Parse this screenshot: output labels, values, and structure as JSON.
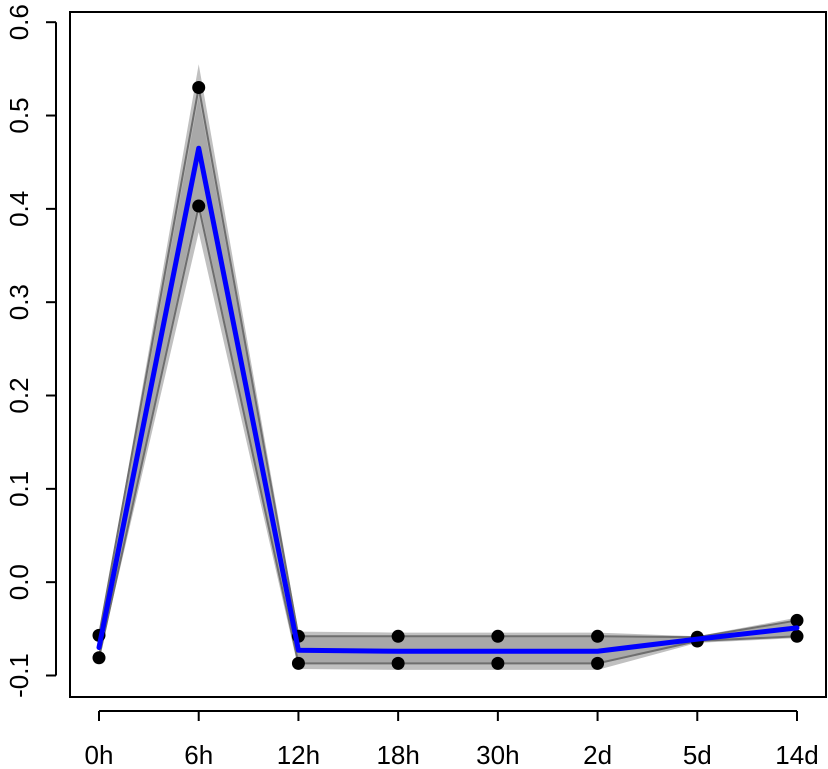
{
  "chart_data": {
    "type": "line",
    "title": "",
    "xlabel": "",
    "ylabel": "",
    "categories": [
      "0h",
      "6h",
      "12h",
      "18h",
      "30h",
      "2d",
      "5d",
      "14d"
    ],
    "ylim": [
      -0.12,
      0.6
    ],
    "yticks": [
      -0.1,
      0.0,
      0.1,
      0.2,
      0.3,
      0.4,
      0.5,
      0.6
    ],
    "ytick_labels": [
      "-0.1",
      "0.0",
      "0.1",
      "0.2",
      "0.3",
      "0.4",
      "0.5",
      "0.6"
    ],
    "mean": [
      -0.07,
      0.465,
      -0.073,
      -0.074,
      -0.074,
      -0.074,
      -0.061,
      -0.049
    ],
    "band_outer_upper": [
      -0.058,
      0.555,
      -0.053,
      -0.054,
      -0.054,
      -0.054,
      -0.058,
      -0.038
    ],
    "band_outer_lower": [
      -0.082,
      0.375,
      -0.093,
      -0.094,
      -0.094,
      -0.094,
      -0.065,
      -0.06
    ],
    "band_inner_upper": [
      -0.062,
      0.52,
      -0.058,
      -0.058,
      -0.058,
      -0.058,
      -0.059,
      -0.042
    ],
    "band_inner_lower": [
      -0.078,
      0.41,
      -0.087,
      -0.088,
      -0.088,
      -0.088,
      -0.064,
      -0.057
    ],
    "series": [
      {
        "values": [
          -0.057,
          0.53,
          -0.058,
          -0.058,
          -0.058,
          -0.058,
          -0.059,
          -0.041
        ]
      },
      {
        "values": [
          -0.081,
          0.403,
          -0.087,
          -0.087,
          -0.087,
          -0.087,
          -0.063,
          -0.058
        ]
      }
    ],
    "colors": {
      "mean_line": "#0000ff",
      "points": "#000000",
      "band_outer": "#c0c0c0",
      "band_inner": "#a8a8a8",
      "member_lines": "#6e6e6e",
      "axis": "#000000"
    },
    "grid": false,
    "legend": "none"
  }
}
